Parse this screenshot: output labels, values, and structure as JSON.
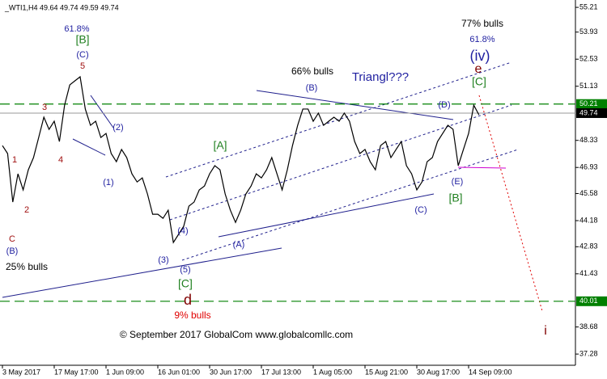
{
  "chart_data": {
    "type": "line",
    "title": "_WTI1,H4  49.64 49.74 49.59 49.74",
    "footer": "© September 2017 GlobalCom www.globalcomllc.com",
    "categories": [
      "3 May 2017",
      null,
      null,
      null,
      null,
      null,
      null,
      null,
      null,
      null,
      "17 May 17:00",
      null,
      null,
      null,
      null,
      null,
      null,
      null,
      null,
      null,
      "1 Jun 09:00",
      null,
      null,
      null,
      null,
      null,
      null,
      null,
      null,
      null,
      "16 Jun 01:00",
      null,
      null,
      null,
      null,
      null,
      null,
      null,
      null,
      null,
      "30 Jun 17:00",
      null,
      null,
      null,
      null,
      null,
      null,
      null,
      null,
      null,
      "17 Jul 13:00",
      null,
      null,
      null,
      null,
      null,
      null,
      null,
      null,
      null,
      "1 Aug 05:00",
      null,
      null,
      null,
      null,
      null,
      null,
      null,
      null,
      null,
      "15 Aug 21:00",
      null,
      null,
      null,
      null,
      null,
      null,
      null,
      null,
      null,
      "30 Aug 17:00",
      null,
      null,
      null,
      null,
      null,
      null,
      null,
      null,
      null,
      "14 Sep 09:00",
      null,
      null
    ],
    "series": [
      {
        "name": "WTI H4",
        "color": "#000000",
        "values": [
          48.06,
          47.65,
          45.14,
          46.6,
          45.77,
          46.81,
          47.44,
          48.48,
          49.53,
          48.9,
          49.32,
          48.27,
          50.15,
          51.2,
          51.41,
          51.62,
          49.95,
          49.11,
          49.32,
          48.48,
          48.69,
          47.65,
          47.23,
          47.86,
          47.44,
          46.6,
          46.18,
          46.39,
          45.56,
          44.51,
          44.51,
          44.3,
          44.72,
          43.05,
          43.47,
          43.89,
          44.93,
          45.14,
          45.77,
          45.97,
          46.6,
          47.02,
          46.81,
          45.56,
          44.72,
          44.09,
          44.72,
          45.56,
          45.97,
          46.6,
          46.39,
          46.81,
          47.44,
          46.6,
          45.77,
          46.81,
          48.06,
          49.11,
          49.95,
          49.95,
          49.32,
          49.74,
          49.11,
          49.32,
          49.53,
          49.32,
          49.74,
          49.32,
          48.27,
          47.65,
          47.86,
          47.23,
          46.81,
          48.06,
          48.27,
          47.44,
          47.86,
          48.27,
          47.02,
          46.6,
          45.77,
          46.18,
          47.23,
          47.44,
          48.27,
          48.69,
          49.11,
          48.9,
          47.02,
          47.86,
          48.69,
          50.15,
          49.65
        ]
      }
    ],
    "ylim": [
      36.7,
      55.59
    ],
    "yticks": [
      55.21,
      53.93,
      52.53,
      51.13,
      48.33,
      46.93,
      45.58,
      44.18,
      42.83,
      41.43,
      38.68,
      37.28
    ],
    "levels": [
      {
        "value": 50.21,
        "style": "dashed",
        "color": "#008000"
      },
      {
        "value": 49.74,
        "style": "current",
        "color": "#000000"
      },
      {
        "value": 40.01,
        "style": "dashed",
        "color": "#008000"
      }
    ],
    "annotations": [
      {
        "text": "61.8%",
        "color": "#1f1fa0"
      },
      {
        "text": "[B]",
        "color": "#208020"
      },
      {
        "text": "(C)",
        "color": "#1f1fa0"
      },
      {
        "text": "5",
        "color": "#a01010"
      },
      {
        "text": "3",
        "color": "#a01010"
      },
      {
        "text": "4",
        "color": "#a01010"
      },
      {
        "text": "1",
        "color": "#a01010"
      },
      {
        "text": "2",
        "color": "#a01010"
      },
      {
        "text": "(2)",
        "color": "#1f1fa0"
      },
      {
        "text": "(1)",
        "color": "#1f1fa0"
      },
      {
        "text": "C",
        "color": "#a01010"
      },
      {
        "text": "(B)",
        "color": "#1f1fa0"
      },
      {
        "text": "25% bulls",
        "color": "#000000"
      },
      {
        "text": "(4)",
        "color": "#1f1fa0"
      },
      {
        "text": "(3)",
        "color": "#1f1fa0"
      },
      {
        "text": "(5)",
        "color": "#1f1fa0"
      },
      {
        "text": "[C]",
        "color": "#208020"
      },
      {
        "text": "d",
        "color": "#800000"
      },
      {
        "text": "9% bulls",
        "color": "#e00000"
      },
      {
        "text": "[A]",
        "color": "#208020"
      },
      {
        "text": "(A)",
        "color": "#1f1fa0"
      },
      {
        "text": "(B)",
        "color": "#1f1fa0"
      },
      {
        "text": "66% bulls",
        "color": "#000000"
      },
      {
        "text": "Triangl???",
        "color": "#1f1fa0"
      },
      {
        "text": "(D)",
        "color": "#1f1fa0"
      },
      {
        "text": "(E)",
        "color": "#1f1fa0"
      },
      {
        "text": "[B]",
        "color": "#208020"
      },
      {
        "text": "(C)",
        "color": "#1f1fa0"
      },
      {
        "text": "77% bulls",
        "color": "#000000"
      },
      {
        "text": "61.8%",
        "color": "#1f1fa0"
      },
      {
        "text": "(iv)",
        "color": "#1f1fa0"
      },
      {
        "text": "e",
        "color": "#800000"
      },
      {
        "text": "[C]",
        "color": "#208020"
      },
      {
        "text": "i",
        "color": "#800000"
      }
    ]
  }
}
